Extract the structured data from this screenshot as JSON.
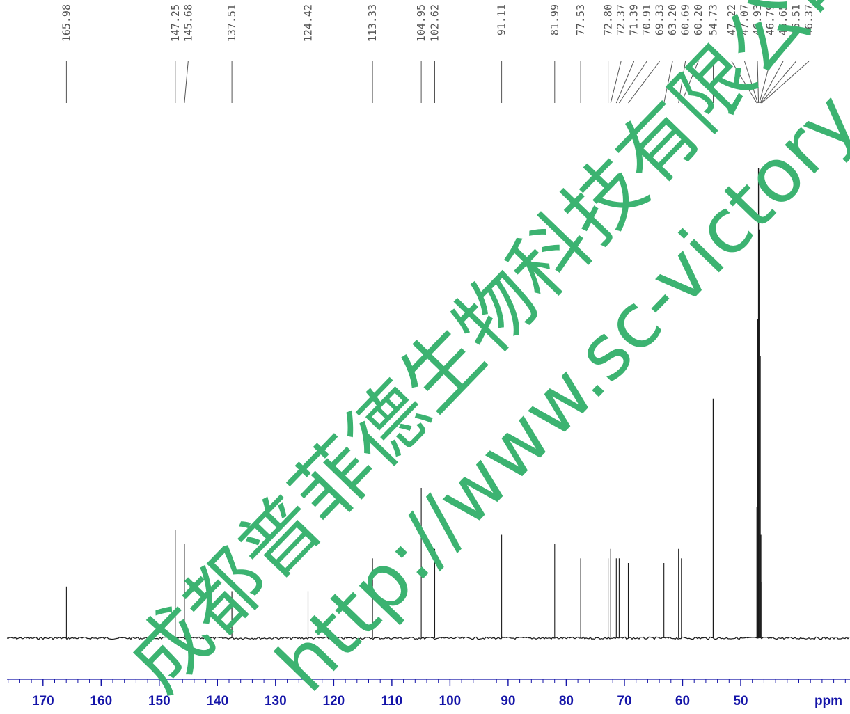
{
  "colors": {
    "spectrum": "#1a1a1a",
    "axis": "#1414a8",
    "peak_label": "#555555",
    "watermark": "#3cb371"
  },
  "chart_data": {
    "type": "line",
    "title": "",
    "xlabel": "ppm",
    "ylabel": "",
    "x_reversed": true,
    "xlim": [
      176.2,
      31.2
    ],
    "x_ticks": [
      170,
      160,
      150,
      140,
      130,
      120,
      110,
      100,
      90,
      80,
      70,
      60,
      50
    ],
    "grid": false,
    "peak_labels": [
      "165.98",
      "147.25",
      "145.68",
      "137.51",
      "124.42",
      "113.33",
      "104.95",
      "102.62",
      "91.11",
      "81.99",
      "77.53",
      "72.80",
      "72.37",
      "71.39",
      "70.91",
      "69.33",
      "63.20",
      "60.69",
      "60.20",
      "54.73",
      "47.22",
      "47.07",
      "46.93",
      "46.79",
      "46.65",
      "46.51",
      "46.37"
    ],
    "series": [
      {
        "peaks": [
          {
            "x": 165.98,
            "y": 0.11
          },
          {
            "x": 147.25,
            "y": 0.23
          },
          {
            "x": 145.68,
            "y": 0.2
          },
          {
            "x": 137.51,
            "y": 0.1
          },
          {
            "x": 124.42,
            "y": 0.1
          },
          {
            "x": 113.33,
            "y": 0.17
          },
          {
            "x": 104.95,
            "y": 0.32
          },
          {
            "x": 102.62,
            "y": 0.19
          },
          {
            "x": 91.11,
            "y": 0.22
          },
          {
            "x": 81.99,
            "y": 0.2
          },
          {
            "x": 77.53,
            "y": 0.17
          },
          {
            "x": 72.8,
            "y": 0.17
          },
          {
            "x": 72.37,
            "y": 0.19
          },
          {
            "x": 71.39,
            "y": 0.17
          },
          {
            "x": 70.91,
            "y": 0.17
          },
          {
            "x": 69.33,
            "y": 0.16
          },
          {
            "x": 63.2,
            "y": 0.16
          },
          {
            "x": 60.69,
            "y": 0.19
          },
          {
            "x": 60.2,
            "y": 0.17
          },
          {
            "x": 54.73,
            "y": 0.51
          },
          {
            "x": 47.22,
            "y": 0.28
          },
          {
            "x": 47.07,
            "y": 0.68
          },
          {
            "x": 46.93,
            "y": 1.0
          },
          {
            "x": 46.79,
            "y": 0.87
          },
          {
            "x": 46.65,
            "y": 0.6
          },
          {
            "x": 46.51,
            "y": 0.22
          },
          {
            "x": 46.37,
            "y": 0.12
          }
        ]
      }
    ]
  },
  "watermark": {
    "line1": "成都普菲德生物科技有限公司",
    "line2": "http://www.sc-victory.com"
  }
}
